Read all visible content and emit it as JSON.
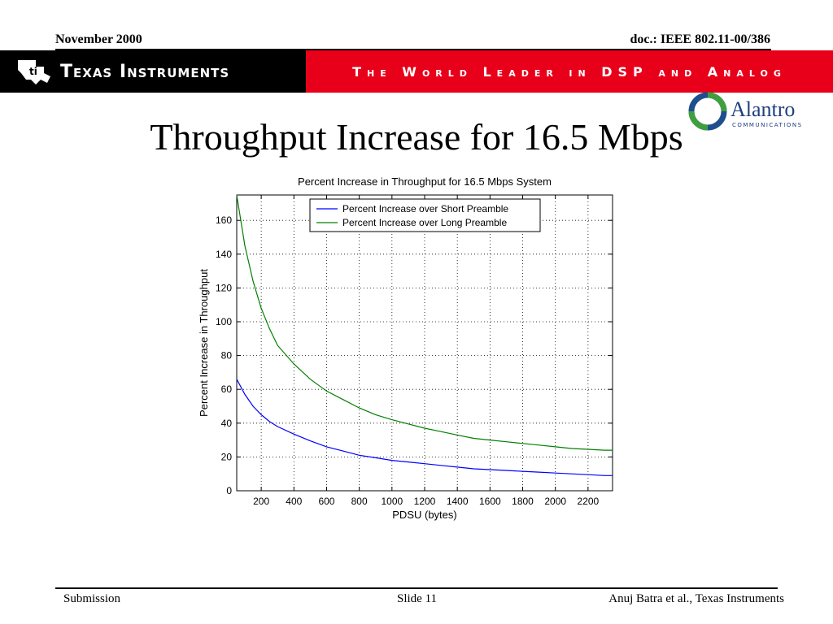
{
  "header": {
    "date": "November 2000",
    "doc": "doc.: IEEE 802.11-00/386"
  },
  "banner": {
    "company": "Texas Instruments",
    "slogan": "The World Leader in DSP and Analog",
    "company_color": "#000000",
    "slogan_color": "#e8001a"
  },
  "partner_logo": {
    "name": "Alantro",
    "sub": "COMMUNICATIONS",
    "icon": "circular-arrows-logo-icon"
  },
  "slide": {
    "title": "Throughput Increase for 16.5 Mbps"
  },
  "footer": {
    "left": "Submission",
    "center": "Slide 11",
    "right": "Anuj Batra et al., Texas Instruments"
  },
  "chart_data": {
    "type": "line",
    "title": "Percent Increase in Throughput for 16.5 Mbps System",
    "xlabel": "PDSU (bytes)",
    "ylabel": "Percent Increase in Throughput",
    "xlim": [
      50,
      2350
    ],
    "ylim": [
      0,
      175
    ],
    "xticks": [
      200,
      400,
      600,
      800,
      1000,
      1200,
      1400,
      1600,
      1800,
      2000,
      2200
    ],
    "yticks": [
      0,
      20,
      40,
      60,
      80,
      100,
      120,
      140,
      160
    ],
    "grid": true,
    "legend_position": "top-center",
    "series": [
      {
        "name": "Percent Increase over Short Preamble",
        "color": "#0000ff",
        "x": [
          50,
          100,
          150,
          200,
          250,
          300,
          400,
          500,
          600,
          700,
          800,
          900,
          1000,
          1100,
          1200,
          1300,
          1400,
          1500,
          1600,
          1700,
          1800,
          1900,
          2000,
          2100,
          2200,
          2300,
          2350
        ],
        "y": [
          66,
          57,
          50,
          45,
          41,
          38,
          33.5,
          29.5,
          26,
          23.5,
          21,
          19.5,
          18,
          17,
          16,
          15,
          14,
          13,
          12.5,
          12,
          11.5,
          11,
          10.5,
          10,
          9.5,
          9,
          9
        ]
      },
      {
        "name": "Percent Increase over Long Preamble",
        "color": "#007f00",
        "x": [
          50,
          100,
          150,
          200,
          250,
          300,
          400,
          500,
          600,
          700,
          800,
          900,
          1000,
          1100,
          1200,
          1300,
          1400,
          1500,
          1600,
          1700,
          1800,
          1900,
          2000,
          2100,
          2200,
          2300,
          2350
        ],
        "y": [
          175,
          145,
          124,
          108,
          96,
          86,
          75,
          66,
          59,
          54,
          49,
          45,
          42,
          39.5,
          37,
          35,
          33,
          31,
          30,
          29,
          28,
          27,
          26,
          25,
          24.5,
          24,
          24
        ]
      }
    ]
  }
}
